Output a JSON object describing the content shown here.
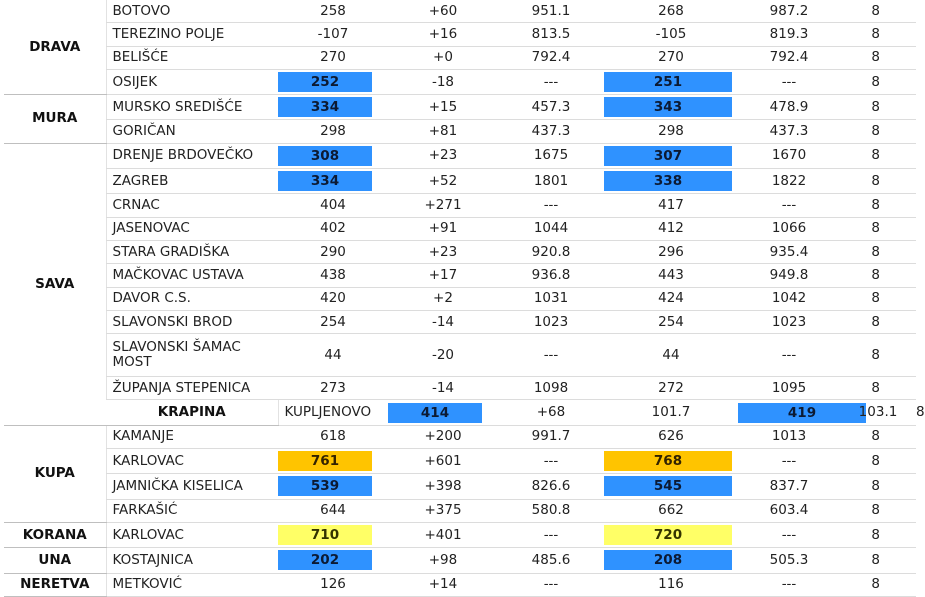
{
  "rows": [
    {
      "river": "DRAVA",
      "span": 4,
      "station": "BOTOVO",
      "v1": "258",
      "chg": "+60",
      "v2": "951.1",
      "v3": "268",
      "v4": "987.2",
      "v5": "8"
    },
    {
      "station": "TEREZINO POLJE",
      "v1": "-107",
      "chg": "+16",
      "v2": "813.5",
      "v3": "-105",
      "v4": "819.3",
      "v5": "8"
    },
    {
      "station": "BELIŠĆE",
      "v1": "270",
      "chg": "+0",
      "v2": "792.4",
      "v3": "270",
      "v4": "792.4",
      "v5": "8"
    },
    {
      "station": "OSIJEK",
      "v1": "252",
      "hl1": "blue",
      "chg": "-18",
      "v2": "---",
      "v3": "251",
      "hl3": "blue",
      "v4": "---",
      "v5": "8"
    },
    {
      "river": "MURA",
      "span": 2,
      "station": "MURSKO SREDIŠĆE",
      "v1": "334",
      "hl1": "blue",
      "chg": "+15",
      "v2": "457.3",
      "v3": "343",
      "hl3": "blue",
      "v4": "478.9",
      "v5": "8"
    },
    {
      "station": "GORIČAN",
      "v1": "298",
      "chg": "+81",
      "v2": "437.3",
      "v3": "298",
      "v4": "437.3",
      "v5": "8"
    },
    {
      "river": "SAVA",
      "span": 11,
      "station": "DRENJE BRDOVEČKO",
      "v1": "308",
      "hl1": "blue",
      "chg": "+23",
      "v2": "1675",
      "v3": "307",
      "hl3": "blue",
      "v4": "1670",
      "v5": "8"
    },
    {
      "station": "ZAGREB",
      "v1": "334",
      "hl1": "blue",
      "chg": "+52",
      "v2": "1801",
      "v3": "338",
      "hl3": "blue",
      "v4": "1822",
      "v5": "8"
    },
    {
      "station": "CRNAC",
      "v1": "404",
      "chg": "+271",
      "v2": "---",
      "v3": "417",
      "v4": "---",
      "v5": "8"
    },
    {
      "station": "JASENOVAC",
      "v1": "402",
      "chg": "+91",
      "v2": "1044",
      "v3": "412",
      "v4": "1066",
      "v5": "8"
    },
    {
      "station": "STARA GRADIŠKA",
      "v1": "290",
      "chg": "+23",
      "v2": "920.8",
      "v3": "296",
      "v4": "935.4",
      "v5": "8"
    },
    {
      "station": "MAČKOVAC USTAVA",
      "v1": "438",
      "chg": "+17",
      "v2": "936.8",
      "v3": "443",
      "v4": "949.8",
      "v5": "8"
    },
    {
      "station": "DAVOR C.S.",
      "v1": "420",
      "chg": "+2",
      "v2": "1031",
      "v3": "424",
      "v4": "1042",
      "v5": "8"
    },
    {
      "station": "SLAVONSKI BROD",
      "v1": "254",
      "chg": "-14",
      "v2": "1023",
      "v3": "254",
      "v4": "1023",
      "v5": "8"
    },
    {
      "station": "SLAVONSKI ŠAMAC MOST",
      "tall": true,
      "v1": "44",
      "chg": "-20",
      "v2": "---",
      "v3": "44",
      "v4": "---",
      "v5": "8"
    },
    {
      "station": "ŽUPANJA STEPENICA",
      "v1": "273",
      "chg": "-14",
      "v2": "1098",
      "v3": "272",
      "v4": "1095",
      "v5": "8"
    },
    {
      "river": "KRAPINA",
      "span": 1,
      "station": "KUPLJENOVO",
      "v1": "414",
      "hl1": "blue",
      "chg": "+68",
      "v2": "101.7",
      "v3": "419",
      "hl3": "blue",
      "v4": "103.1",
      "v5": "8"
    },
    {
      "river": "KUPA",
      "span": 4,
      "station": "KAMANJE",
      "v1": "618",
      "chg": "+200",
      "v2": "991.7",
      "v3": "626",
      "v4": "1013",
      "v5": "8"
    },
    {
      "station": "KARLOVAC",
      "v1": "761",
      "hl1": "orange",
      "chg": "+601",
      "v2": "---",
      "v3": "768",
      "hl3": "orange",
      "v4": "---",
      "v5": "8"
    },
    {
      "station": "JAMNIČKA KISELICA",
      "v1": "539",
      "hl1": "blue",
      "chg": "+398",
      "v2": "826.6",
      "v3": "545",
      "hl3": "blue",
      "v4": "837.7",
      "v5": "8"
    },
    {
      "station": "FARKAŠIĆ",
      "v1": "644",
      "chg": "+375",
      "v2": "580.8",
      "v3": "662",
      "v4": "603.4",
      "v5": "8"
    },
    {
      "river": "KORANA",
      "span": 1,
      "station": "KARLOVAC",
      "v1": "710",
      "hl1": "yellow",
      "chg": "+401",
      "v2": "---",
      "v3": "720",
      "hl3": "yellow",
      "v4": "---",
      "v5": "8"
    },
    {
      "river": "UNA",
      "span": 1,
      "station": "KOSTAJNICA",
      "v1": "202",
      "hl1": "blue",
      "chg": "+98",
      "v2": "485.6",
      "v3": "208",
      "hl3": "blue",
      "v4": "505.3",
      "v5": "8"
    },
    {
      "river": "NERETVA",
      "span": 1,
      "station": "METKOVIĆ",
      "v1": "126",
      "chg": "+14",
      "v2": "---",
      "v3": "116",
      "v4": "---",
      "v5": "8"
    }
  ],
  "colors": {
    "blue": "#2f92ff",
    "orange": "#ffc400",
    "yellow": "#ffff66"
  }
}
